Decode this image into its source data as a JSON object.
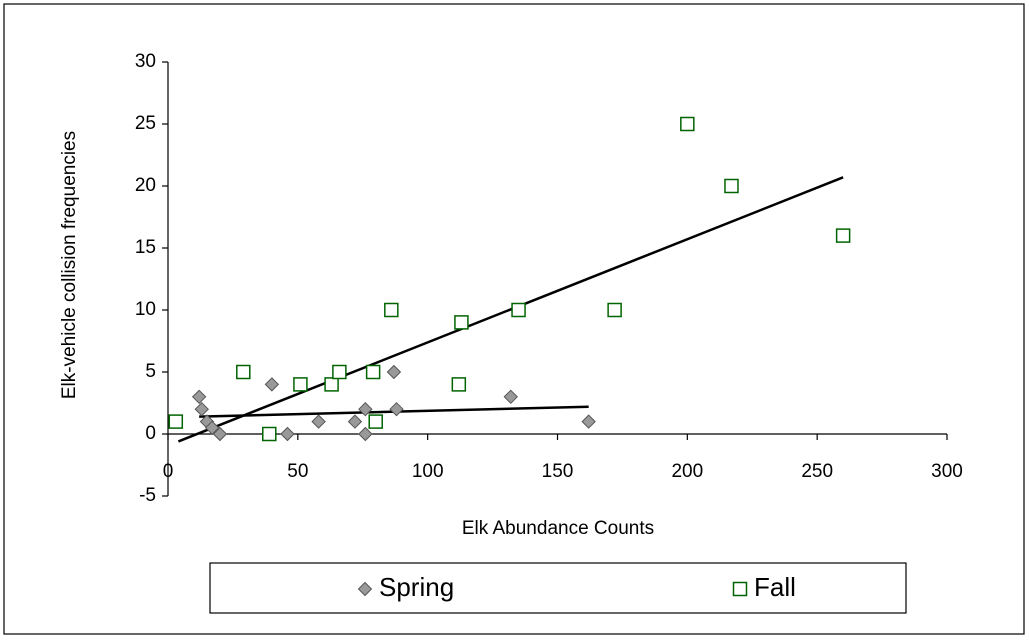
{
  "chart_data": {
    "type": "scatter",
    "x_label": "Elk Abundance Counts",
    "y_label": "Elk-vehicle collision frequencies",
    "xlim": [
      0,
      300
    ],
    "xticks": [
      0,
      50,
      100,
      150,
      200,
      250,
      300
    ],
    "ylim": [
      -5,
      30
    ],
    "yticks": [
      -5,
      0,
      5,
      10,
      15,
      20,
      25,
      30
    ],
    "series": [
      {
        "name": "Spring",
        "marker": "diamond",
        "color": "#999999",
        "x": [
          12,
          13,
          15,
          17,
          20,
          40,
          46,
          58,
          72,
          76,
          76,
          87,
          88,
          132,
          162
        ],
        "values": [
          3,
          2,
          1,
          0.5,
          0,
          4,
          0,
          1,
          1,
          2,
          0,
          5,
          2,
          3,
          1
        ],
        "trend": {
          "x": [
            12,
            162
          ],
          "y": [
            1.4,
            2.2
          ]
        }
      },
      {
        "name": "Fall",
        "marker": "square",
        "color": "#006400",
        "x": [
          3,
          29,
          39,
          51,
          63,
          66,
          79,
          80,
          86,
          112,
          113,
          135,
          172,
          200,
          217,
          260
        ],
        "values": [
          1,
          5,
          0,
          4,
          4,
          5,
          5,
          1,
          10,
          4,
          9,
          10,
          10,
          25,
          20,
          16
        ],
        "trend": {
          "x": [
            4,
            260
          ],
          "y": [
            -0.6,
            20.7
          ]
        }
      }
    ]
  }
}
